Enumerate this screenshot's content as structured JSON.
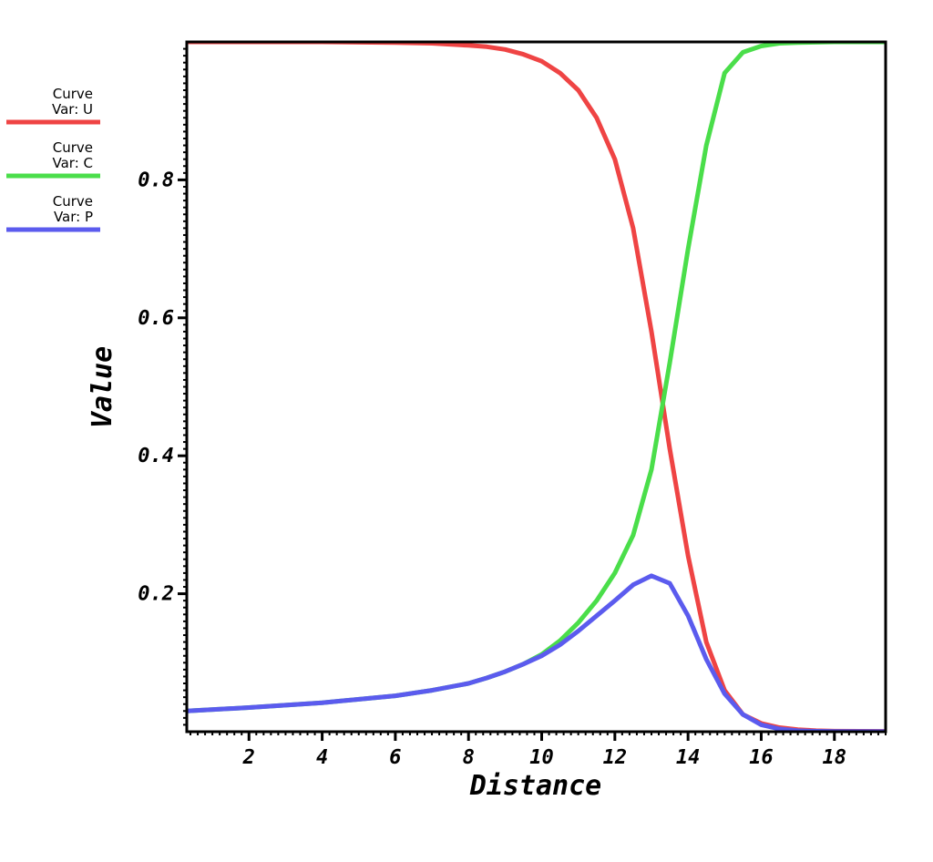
{
  "chart_data": {
    "type": "line",
    "xlabel": "Distance",
    "ylabel": "Value",
    "xlim": [
      0.3,
      19.4
    ],
    "ylim": [
      0.0,
      1.0
    ],
    "x_ticks": [
      2,
      4,
      6,
      8,
      10,
      12,
      14,
      16,
      18
    ],
    "x_tick_labels": [
      "2",
      "4",
      "6",
      "8",
      "10",
      "12",
      "14",
      "16",
      "18"
    ],
    "y_ticks": [
      0.2,
      0.4,
      0.6,
      0.8
    ],
    "y_tick_labels": [
      "0.2",
      "0.4",
      "0.6",
      "0.8"
    ],
    "grid": false,
    "legend_position": "left",
    "series": [
      {
        "name": "Curve\nVar: U",
        "legend_line1": "Curve",
        "legend_line2": "Var: U",
        "color": "#ef4444",
        "x": [
          0.3,
          2,
          4,
          6,
          7,
          8,
          8.5,
          9,
          9.5,
          10,
          10.5,
          11,
          11.5,
          12,
          12.5,
          13,
          13.5,
          14,
          14.5,
          15,
          15.5,
          16,
          16.5,
          17,
          17.5,
          18,
          19.4
        ],
        "y": [
          1.0,
          1.0,
          1.0,
          0.999,
          0.998,
          0.995,
          0.993,
          0.989,
          0.982,
          0.972,
          0.955,
          0.93,
          0.89,
          0.83,
          0.73,
          0.58,
          0.41,
          0.255,
          0.13,
          0.06,
          0.025,
          0.012,
          0.006,
          0.003,
          0.0015,
          0.0008,
          0.0005
        ]
      },
      {
        "name": "Curve\nVar: C",
        "legend_line1": "Curve",
        "legend_line2": "Var: C",
        "color": "#4ade4a",
        "x": [
          0.3,
          2,
          4,
          6,
          7,
          8,
          8.5,
          9,
          9.5,
          10,
          10.5,
          11,
          11.5,
          12,
          12.5,
          13,
          13.5,
          14,
          14.5,
          15,
          15.5,
          16,
          16.5,
          17,
          17.5,
          18,
          19.4
        ],
        "y": [
          0.03,
          0.035,
          0.042,
          0.052,
          0.06,
          0.07,
          0.078,
          0.087,
          0.098,
          0.112,
          0.132,
          0.158,
          0.19,
          0.23,
          0.285,
          0.38,
          0.535,
          0.7,
          0.85,
          0.955,
          0.985,
          0.994,
          0.998,
          0.999,
          0.9995,
          1.0,
          1.0
        ]
      },
      {
        "name": "Curve\nVar: P",
        "legend_line1": "Curve",
        "legend_line2": "Var: P",
        "color": "#5b5bee",
        "x": [
          0.3,
          2,
          4,
          6,
          7,
          8,
          8.5,
          9,
          9.5,
          10,
          10.5,
          11,
          11.5,
          12,
          12.5,
          13,
          13.5,
          14,
          14.5,
          15,
          15.5,
          16,
          16.5,
          17,
          17.5,
          18,
          19.4
        ],
        "y": [
          0.03,
          0.035,
          0.042,
          0.052,
          0.06,
          0.07,
          0.078,
          0.087,
          0.098,
          0.11,
          0.126,
          0.146,
          0.168,
          0.19,
          0.213,
          0.226,
          0.215,
          0.168,
          0.105,
          0.055,
          0.025,
          0.01,
          0.004,
          0.0015,
          0.0006,
          0.0003,
          0.0001
        ]
      }
    ]
  }
}
